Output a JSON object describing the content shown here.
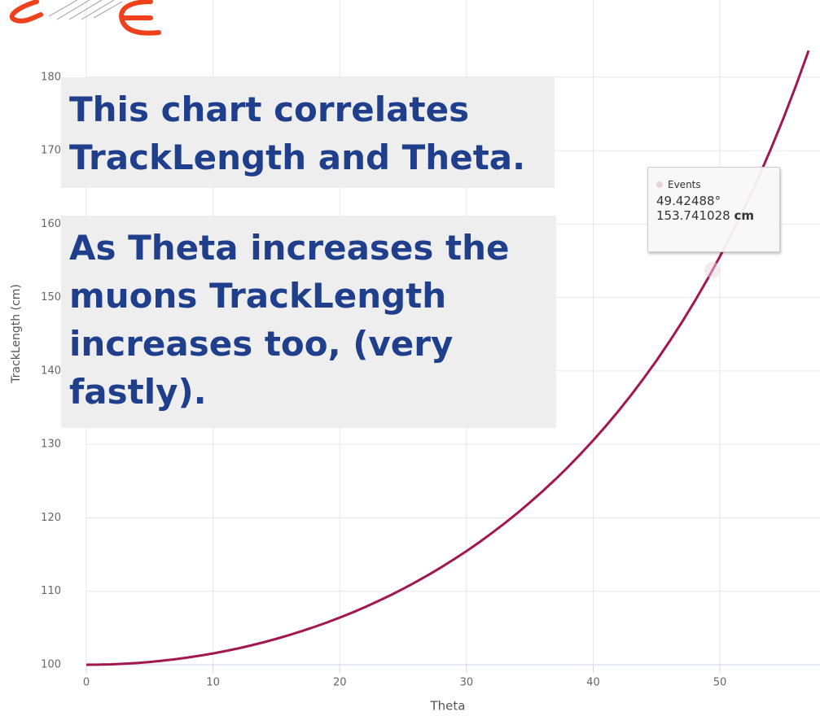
{
  "chart_data": {
    "type": "line",
    "x_label": "Theta",
    "y_label": "TrackLength (cm)",
    "x": [
      0,
      1,
      2,
      3,
      4,
      5,
      6,
      7,
      8,
      9,
      10,
      11,
      12,
      13,
      14,
      15,
      16,
      17,
      18,
      19,
      20,
      21,
      22,
      23,
      24,
      25,
      26,
      27,
      28,
      29,
      30,
      31,
      32,
      33,
      34,
      35,
      36,
      37,
      38,
      39,
      40,
      41,
      42,
      43,
      44,
      45,
      46,
      47,
      48,
      49,
      50,
      51,
      52,
      53,
      54,
      55,
      56,
      57
    ],
    "series": [
      {
        "name": "Events",
        "color": "#a3174f",
        "values": [
          100.0,
          100.02,
          100.06,
          100.14,
          100.24,
          100.38,
          100.55,
          100.75,
          100.98,
          101.25,
          101.54,
          101.87,
          102.23,
          102.63,
          103.06,
          103.53,
          104.03,
          104.57,
          105.15,
          105.76,
          106.42,
          107.11,
          107.85,
          108.64,
          109.46,
          110.34,
          111.26,
          112.23,
          113.26,
          114.34,
          115.47,
          116.66,
          117.92,
          119.24,
          120.62,
          122.08,
          123.61,
          125.21,
          126.9,
          128.68,
          130.54,
          132.5,
          134.56,
          136.73,
          139.02,
          141.42,
          143.96,
          146.63,
          149.45,
          152.43,
          155.57,
          158.9,
          162.43,
          166.16,
          170.13,
          174.34,
          178.83,
          183.61
        ]
      }
    ],
    "xlim": [
      0,
      57.9
    ],
    "ylim": [
      100,
      190.5
    ],
    "xticks": [
      0,
      10,
      20,
      30,
      40,
      50
    ],
    "yticks": [
      100,
      110,
      120,
      130,
      140,
      150,
      160,
      170,
      180
    ],
    "grid": true,
    "tooltip": {
      "x": {
        "value": 49.42488,
        "label": "49.42488°"
      },
      "y": 153.741028,
      "unit": "cm"
    },
    "annotations": [
      {
        "lines": [
          "This chart correlates",
          "TrackLength and Theta."
        ]
      },
      {
        "lines": [
          "As Theta increases the",
          "muons TrackLength",
          "increases too, (very",
          "fastly)."
        ]
      }
    ]
  }
}
